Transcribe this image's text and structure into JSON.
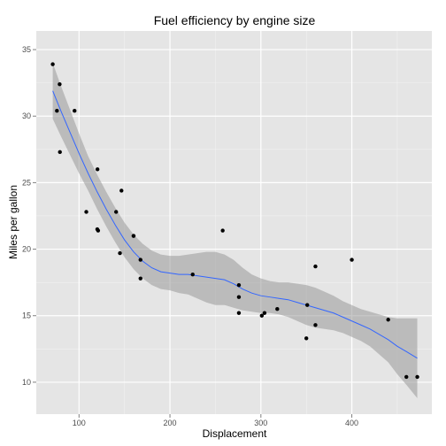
{
  "chart_data": {
    "type": "scatter",
    "title": "Fuel efficiency by engine size",
    "xlabel": "Displacement",
    "ylabel": "Miles per gallon",
    "xlim": [
      53,
      488
    ],
    "ylim": [
      7.6,
      36.4
    ],
    "xticks": [
      100,
      200,
      300,
      400
    ],
    "xtick_labels": [
      "100",
      "200",
      "300",
      "400"
    ],
    "yticks": [
      10,
      15,
      20,
      25,
      30,
      35
    ],
    "ytick_labels": [
      "10",
      "15",
      "20",
      "25",
      "30",
      "35"
    ],
    "grid": true,
    "legend": "none",
    "colors": {
      "panel": "#e5e5e5",
      "grid_major": "#ffffff",
      "grid_minor": "#f2f2f2",
      "point": "#000000",
      "smooth_line": "#3366ff",
      "ribbon": "#999999"
    },
    "points": [
      {
        "x": 71.1,
        "y": 33.9
      },
      {
        "x": 75.7,
        "y": 30.4
      },
      {
        "x": 78.7,
        "y": 32.4
      },
      {
        "x": 79.0,
        "y": 27.3
      },
      {
        "x": 95.1,
        "y": 30.4
      },
      {
        "x": 108.0,
        "y": 22.8
      },
      {
        "x": 120.1,
        "y": 21.5
      },
      {
        "x": 120.3,
        "y": 26.0
      },
      {
        "x": 121.0,
        "y": 21.4
      },
      {
        "x": 140.8,
        "y": 22.8
      },
      {
        "x": 145.0,
        "y": 19.7
      },
      {
        "x": 146.7,
        "y": 24.4
      },
      {
        "x": 160.0,
        "y": 21.0
      },
      {
        "x": 160.0,
        "y": 21.0
      },
      {
        "x": 167.6,
        "y": 19.2
      },
      {
        "x": 167.6,
        "y": 17.8
      },
      {
        "x": 225.0,
        "y": 18.1
      },
      {
        "x": 258.0,
        "y": 21.4
      },
      {
        "x": 275.8,
        "y": 16.4
      },
      {
        "x": 275.8,
        "y": 17.3
      },
      {
        "x": 275.8,
        "y": 15.2
      },
      {
        "x": 301.0,
        "y": 15.0
      },
      {
        "x": 304.0,
        "y": 15.2
      },
      {
        "x": 318.0,
        "y": 15.5
      },
      {
        "x": 350.0,
        "y": 13.3
      },
      {
        "x": 351.0,
        "y": 15.8
      },
      {
        "x": 360.0,
        "y": 14.3
      },
      {
        "x": 360.0,
        "y": 18.7
      },
      {
        "x": 400.0,
        "y": 19.2
      },
      {
        "x": 440.0,
        "y": 14.7
      },
      {
        "x": 460.0,
        "y": 10.4
      },
      {
        "x": 472.0,
        "y": 10.4
      }
    ],
    "smooth": {
      "x": [
        71.1,
        80,
        90,
        100,
        110,
        120,
        130,
        140,
        150,
        160,
        170,
        180,
        190,
        200,
        210,
        220,
        230,
        240,
        250,
        260,
        270,
        280,
        290,
        300,
        310,
        320,
        330,
        340,
        350,
        360,
        370,
        380,
        390,
        400,
        410,
        420,
        430,
        440,
        450,
        460,
        472
      ],
      "y": [
        31.9,
        30.4,
        28.8,
        27.2,
        25.7,
        24.3,
        23.0,
        21.8,
        20.7,
        19.8,
        19.1,
        18.6,
        18.3,
        18.2,
        18.1,
        18.1,
        18.0,
        17.9,
        17.8,
        17.7,
        17.4,
        17.0,
        16.7,
        16.5,
        16.4,
        16.3,
        16.2,
        16.0,
        15.8,
        15.6,
        15.4,
        15.2,
        14.9,
        14.6,
        14.3,
        14.0,
        13.6,
        13.2,
        12.7,
        12.3,
        11.8
      ],
      "upper": [
        34.0,
        32.3,
        30.5,
        28.7,
        27.0,
        25.6,
        24.3,
        23.1,
        22.0,
        21.1,
        20.4,
        19.9,
        19.6,
        19.5,
        19.5,
        19.6,
        19.7,
        19.8,
        19.8,
        19.6,
        19.2,
        18.6,
        18.1,
        17.8,
        17.6,
        17.5,
        17.5,
        17.4,
        17.3,
        17.1,
        16.8,
        16.5,
        16.1,
        15.8,
        15.5,
        15.3,
        15.1,
        14.9,
        14.8,
        14.8,
        14.8
      ],
      "lower": [
        29.8,
        28.5,
        27.1,
        25.7,
        24.4,
        23.0,
        21.7,
        20.5,
        19.4,
        18.5,
        17.8,
        17.3,
        17.0,
        16.9,
        16.7,
        16.6,
        16.3,
        16.0,
        15.8,
        15.8,
        15.6,
        15.4,
        15.3,
        15.2,
        15.2,
        15.1,
        14.9,
        14.6,
        14.3,
        14.1,
        14.0,
        13.9,
        13.7,
        13.4,
        13.1,
        12.7,
        12.1,
        11.5,
        10.6,
        9.8,
        8.8
      ]
    }
  }
}
